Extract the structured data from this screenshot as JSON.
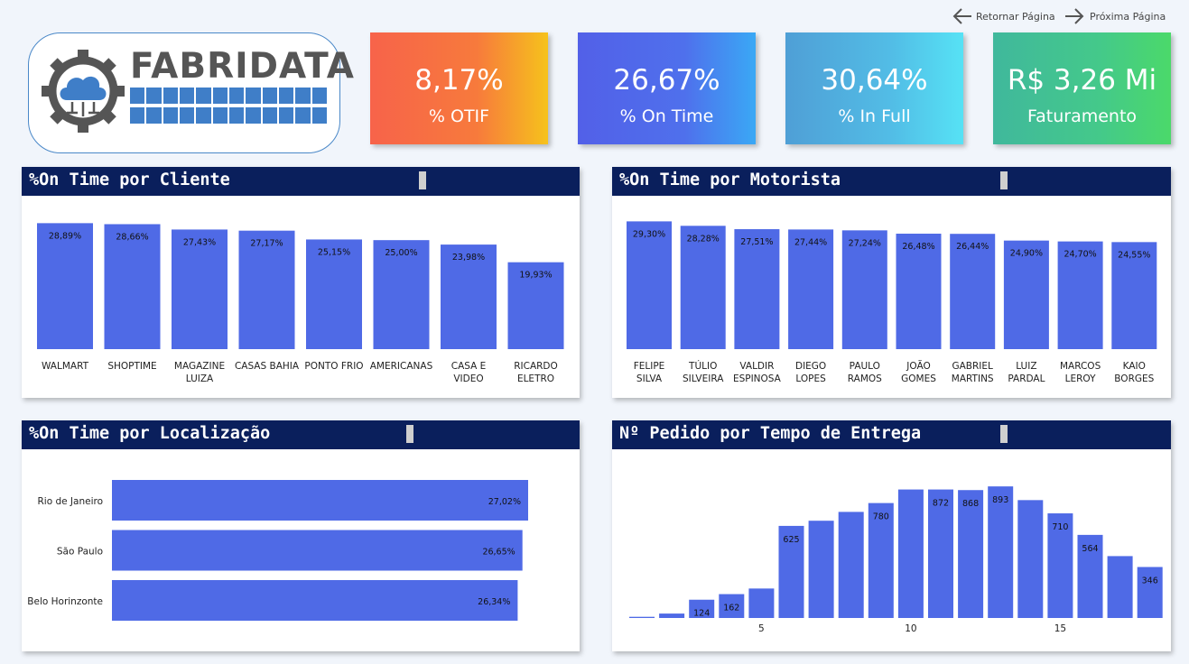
{
  "nav": {
    "back_label": "Retornar Página",
    "next_label": "Próxima Página"
  },
  "logo": {
    "text": "FABRIDATA"
  },
  "kpis": [
    {
      "value": "8,17%",
      "label": "% OTIF"
    },
    {
      "value": "26,67%",
      "label": "% On Time"
    },
    {
      "value": "30,64%",
      "label": "% In Full"
    },
    {
      "value": "R$ 3,26 Mi",
      "label": "Faturamento"
    }
  ],
  "colors": {
    "bar": "#4f6ae6",
    "header": "#0a1f5c",
    "kpi_otif": [
      "#f7634a",
      "#f6c21c"
    ],
    "kpi_ontime": [
      "#5260e8",
      "#3aa8f5"
    ],
    "kpi_infull": [
      "#4f9fd6",
      "#56e2f5"
    ],
    "kpi_faturamento": [
      "#40b89c",
      "#4bd96a"
    ]
  },
  "panels": {
    "cliente": {
      "title": "%On Time por Cliente"
    },
    "motorista": {
      "title": "%On Time por Motorista"
    },
    "localizacao": {
      "title": "%On Time por Localização"
    },
    "tempo": {
      "title": "Nº Pedido por Tempo de Entrega"
    }
  },
  "chart_data": [
    {
      "type": "bar",
      "title": "%On Time por Cliente",
      "categories": [
        "WALMART",
        "SHOPTIME",
        "MAGAZINE LUIZA",
        "CASAS BAHIA",
        "PONTO FRIO",
        "AMERICANAS",
        "CASA E VIDEO",
        "RICARDO ELETRO"
      ],
      "category_lines": [
        [
          "WALMART"
        ],
        [
          "SHOPTIME"
        ],
        [
          "MAGAZINE",
          "LUIZA"
        ],
        [
          "CASAS BAHIA"
        ],
        [
          "PONTO FRIO"
        ],
        [
          "AMERICANAS"
        ],
        [
          "CASA E",
          "VIDEO"
        ],
        [
          "RICARDO",
          "ELETRO"
        ]
      ],
      "values": [
        28.89,
        28.66,
        27.43,
        27.17,
        25.15,
        25.0,
        23.98,
        19.93
      ],
      "labels": [
        "28,89%",
        "28,66%",
        "27,43%",
        "27,17%",
        "25,15%",
        "25,00%",
        "23,98%",
        "19,93%"
      ],
      "ylim": [
        0,
        30
      ]
    },
    {
      "type": "bar",
      "title": "%On Time por Motorista",
      "categories": [
        "FELIPE SILVA",
        "TÚLIO SILVEIRA",
        "VALDIR ESPINOSA",
        "DIEGO LOPES",
        "PAULO RAMOS",
        "JOÃO GOMES",
        "GABRIEL MARTINS",
        "LUIZ PARDAL",
        "MARCOS LEROY",
        "KAIO BORGES"
      ],
      "category_lines": [
        [
          "FELIPE",
          "SILVA"
        ],
        [
          "TÚLIO",
          "SILVEIRA"
        ],
        [
          "VALDIR",
          "ESPINOSA"
        ],
        [
          "DIEGO",
          "LOPES"
        ],
        [
          "PAULO",
          "RAMOS"
        ],
        [
          "JOÃO",
          "GOMES"
        ],
        [
          "GABRIEL",
          "MARTINS"
        ],
        [
          "LUIZ",
          "PARDAL"
        ],
        [
          "MARCOS",
          "LEROY"
        ],
        [
          "KAIO",
          "BORGES"
        ]
      ],
      "values": [
        29.3,
        28.28,
        27.51,
        27.44,
        27.24,
        26.48,
        26.44,
        24.9,
        24.7,
        24.55
      ],
      "labels": [
        "29,30%",
        "28,28%",
        "27,51%",
        "27,44%",
        "27,24%",
        "26,48%",
        "26,44%",
        "24,90%",
        "24,70%",
        "24,55%"
      ],
      "ylim": [
        0,
        30
      ]
    },
    {
      "type": "bar",
      "orientation": "horizontal",
      "title": "%On Time por Localização",
      "categories": [
        "Rio de Janeiro",
        "São Paulo",
        "Belo Horinzonte"
      ],
      "values": [
        27.02,
        26.65,
        26.34
      ],
      "labels": [
        "27,02%",
        "26,65%",
        "26,34%"
      ],
      "xlim": [
        0,
        27.02
      ]
    },
    {
      "type": "bar",
      "title": "Nº Pedido por Tempo de Entrega",
      "x": [
        1,
        2,
        3,
        4,
        5,
        6,
        7,
        8,
        9,
        10,
        11,
        12,
        13,
        14,
        15,
        16,
        17,
        18,
        19,
        20
      ],
      "values": [
        8,
        30,
        124,
        162,
        200,
        625,
        660,
        720,
        780,
        872,
        872,
        868,
        893,
        800,
        710,
        564,
        420,
        346,
        0,
        0
      ],
      "labels": [
        "",
        "",
        "124",
        "162",
        "",
        "625",
        "",
        "",
        "780",
        "",
        "872",
        "868",
        "893",
        "",
        "710",
        "564",
        "",
        "346",
        "",
        ""
      ],
      "xticks": [
        "5",
        "10",
        "15",
        "20"
      ],
      "ylim": [
        0,
        900
      ]
    }
  ]
}
